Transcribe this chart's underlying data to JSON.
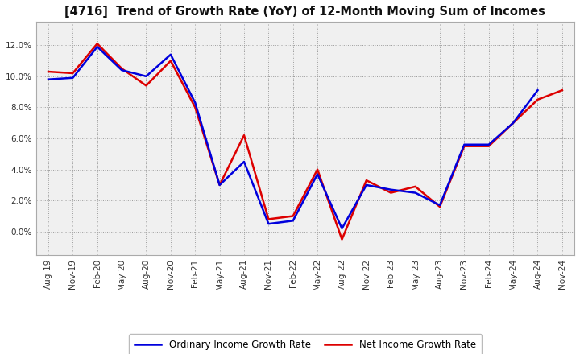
{
  "title": "[4716]  Trend of Growth Rate (YoY) of 12-Month Moving Sum of Incomes",
  "ylim": [
    -0.015,
    0.135
  ],
  "yticks": [
    0.0,
    0.02,
    0.04,
    0.06,
    0.08,
    0.1,
    0.12
  ],
  "background_color": "#ffffff",
  "plot_bg_color": "#f0f0f0",
  "grid_color": "#999999",
  "ordinary_color": "#0000dd",
  "net_color": "#dd0000",
  "ordinary_label": "Ordinary Income Growth Rate",
  "net_label": "Net Income Growth Rate",
  "x_labels": [
    "Aug-19",
    "Nov-19",
    "Feb-20",
    "May-20",
    "Aug-20",
    "Nov-20",
    "Feb-21",
    "May-21",
    "Aug-21",
    "Nov-21",
    "Feb-22",
    "May-22",
    "Aug-22",
    "Nov-22",
    "Feb-23",
    "May-23",
    "Aug-23",
    "Nov-23",
    "Feb-24",
    "May-24",
    "Aug-24",
    "Nov-24"
  ],
  "ordinary": [
    0.098,
    0.099,
    0.119,
    0.104,
    0.1,
    0.114,
    0.083,
    0.03,
    0.045,
    0.005,
    0.007,
    0.037,
    0.002,
    0.03,
    0.027,
    0.025,
    0.017,
    0.056,
    0.056,
    0.07,
    0.091,
    null
  ],
  "net": [
    0.103,
    0.102,
    0.121,
    0.105,
    0.094,
    0.11,
    0.08,
    0.03,
    0.062,
    0.008,
    0.01,
    0.04,
    -0.005,
    0.033,
    0.025,
    0.029,
    0.016,
    0.055,
    0.055,
    0.07,
    0.085,
    0.091
  ]
}
